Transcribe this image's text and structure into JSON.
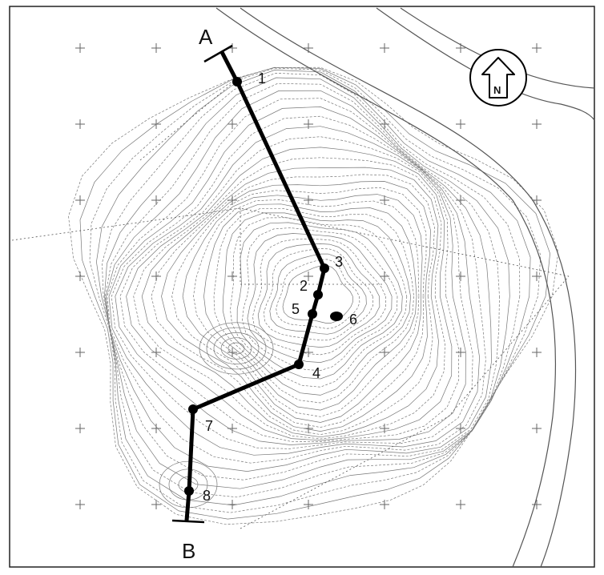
{
  "map": {
    "section_start_label": "A",
    "section_end_label": "B",
    "north_label": "N",
    "points": [
      {
        "label": "1"
      },
      {
        "label": "3"
      },
      {
        "label": "2"
      },
      {
        "label": "5"
      },
      {
        "label": "6"
      },
      {
        "label": "4"
      },
      {
        "label": "7"
      },
      {
        "label": "8"
      }
    ],
    "colors": {
      "line": "#000000",
      "contour": "#7a7a7a",
      "background": "#ffffff"
    }
  }
}
